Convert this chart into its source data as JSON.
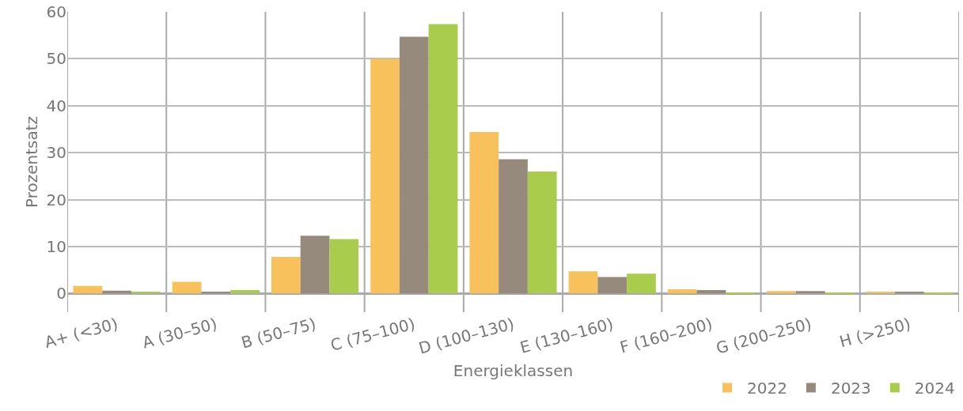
{
  "chart_data": {
    "type": "bar",
    "xlabel": "Energieklassen",
    "ylabel": "Prozentsatz",
    "categories": [
      "A+ (<30)",
      "A (30–50)",
      "B (50–75)",
      "C (75–100)",
      "D (100–130)",
      "E (130–160)",
      "F (160–200)",
      "G (200–250)",
      "H (>250)"
    ],
    "series": [
      {
        "name": "2022",
        "color": "#f9c15c",
        "values": [
          1.6,
          2.5,
          7.8,
          50.0,
          34.4,
          4.7,
          0.9,
          0.5,
          0.4
        ]
      },
      {
        "name": "2023",
        "color": "#968a7c",
        "values": [
          0.6,
          0.4,
          12.3,
          54.7,
          28.6,
          3.5,
          0.7,
          0.5,
          0.4
        ]
      },
      {
        "name": "2024",
        "color": "#a9cc4d",
        "values": [
          0.4,
          0.7,
          11.6,
          57.4,
          26.0,
          4.2,
          0.2,
          0.2,
          0.2
        ]
      }
    ],
    "ylim": [
      -4,
      60
    ],
    "yticks": [
      0,
      10,
      20,
      30,
      40,
      50,
      60
    ],
    "grid": true,
    "legend": "bottom right"
  }
}
